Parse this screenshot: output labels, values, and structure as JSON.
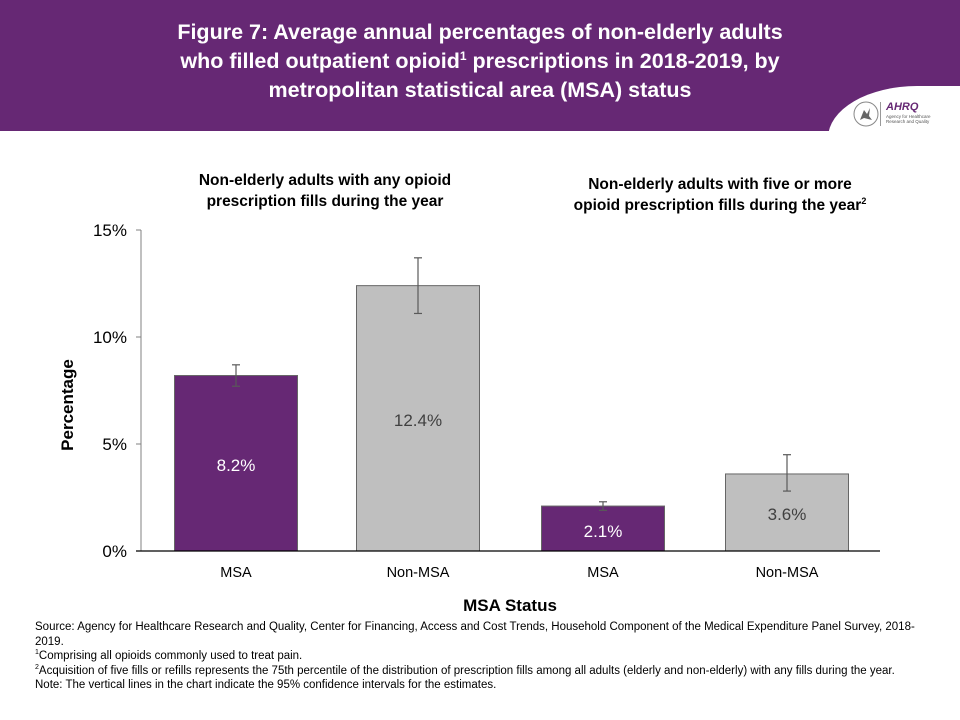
{
  "header": {
    "title_line1": "Figure 7: Average annual percentages of non-elderly adults",
    "title_line2a": "who filled outpatient opioid",
    "title_sup": "1",
    "title_line2b": " prescriptions in 2018-2019, by",
    "title_line3": "metropolitan statistical area (MSA) status",
    "logo_text": "AHRQ",
    "logo_subtext": "Agency for Healthcare Research and Quality",
    "background_color": "#662874"
  },
  "panels": [
    {
      "title_line1": "Non-elderly adults with any opioid",
      "title_line2": "prescription fills during the year",
      "sup": ""
    },
    {
      "title_line1": "Non-elderly adults with five or more",
      "title_line2": "opioid prescription fills during the year",
      "sup": "2"
    }
  ],
  "chart_data": {
    "type": "bar",
    "title": "Figure 7: Average annual percentages of non-elderly adults who filled outpatient opioid prescriptions in 2018-2019, by metropolitan statistical area (MSA) status",
    "xlabel": "MSA Status",
    "ylabel": "Percentage",
    "ylim": [
      0,
      15
    ],
    "yticks": [
      0,
      5,
      10,
      15
    ],
    "ytick_labels": [
      "0%",
      "5%",
      "10%",
      "15%"
    ],
    "grid": false,
    "categories": [
      "MSA",
      "Non-MSA",
      "MSA",
      "Non-MSA"
    ],
    "groups": [
      "Non-elderly adults with any opioid prescription fills during the year",
      "Non-elderly adults with five or more opioid prescription fills during the year"
    ],
    "bars": [
      {
        "group": 0,
        "category": "MSA",
        "value": 8.2,
        "label": "8.2%",
        "ci_low": 7.7,
        "ci_high": 8.7,
        "color": "#662874",
        "label_color": "#ffffff"
      },
      {
        "group": 0,
        "category": "Non-MSA",
        "value": 12.4,
        "label": "12.4%",
        "ci_low": 11.1,
        "ci_high": 13.7,
        "color": "#bfbfbf",
        "label_color": "#404040"
      },
      {
        "group": 1,
        "category": "MSA",
        "value": 2.1,
        "label": "2.1%",
        "ci_low": 1.9,
        "ci_high": 2.3,
        "color": "#662874",
        "label_color": "#ffffff"
      },
      {
        "group": 1,
        "category": "Non-MSA",
        "value": 3.6,
        "label": "3.6%",
        "ci_low": 2.8,
        "ci_high": 4.5,
        "color": "#bfbfbf",
        "label_color": "#404040"
      }
    ]
  },
  "notes": {
    "source": "Source: Agency for Healthcare Research and Quality, Center for Financing, Access and Cost Trends, Household Component of the Medical Expenditure Panel Survey, 2018-2019.",
    "fn1_mark": "1",
    "fn1": "Comprising all opioids commonly used to treat pain.",
    "fn2_mark": "2",
    "fn2": "Acquisition of five fills or refills represents the 75th percentile of the distribution of prescription fills among all adults (elderly and non-elderly) with any fills during the year.",
    "note": "Note: The vertical lines in the chart indicate the 95% confidence intervals for the estimates."
  }
}
